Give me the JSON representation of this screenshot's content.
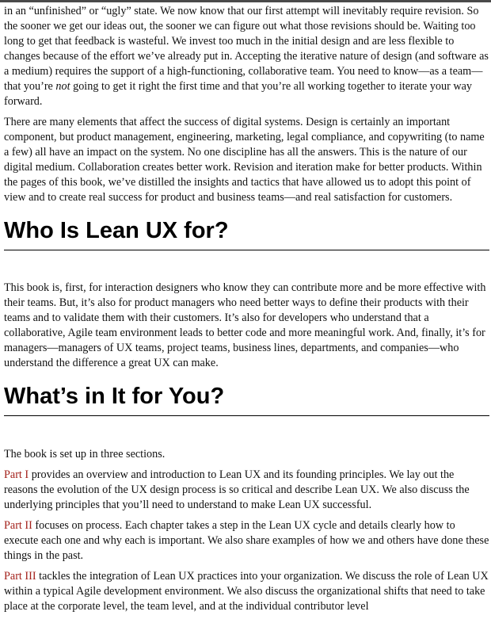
{
  "intro": {
    "p1_before_em": "in an “unfinished” or “ugly” state. We now know that our first attempt will inevitably require revision. So the sooner we get our ideas out, the sooner we can figure out what those revisions should be. Waiting too long to get that feedback is wasteful. We invest too much in the initial design and are less flexible to changes because of the effort we’ve already put in. Accepting the iterative nature of design (and software as a medium) requires the support of a high-functioning, collaborative team. You need to know—as a team—that you’re ",
    "p1_em": "not",
    "p1_after_em": " going to get it right the first time and that you’re all working together to iterate your way forward.",
    "p2": "There are many elements that affect the success of digital systems. Design is certainly an important component, but product management, engineering, marketing, legal compliance, and copywriting (to name a few) all have an impact on the system. No one discipline has all the answers. This is the nature of our digital medium. Collaboration creates better work. Revision and iteration make for better products. Within the pages of this book, we’ve distilled the insights and tactics that have allowed us to adopt this point of view and to create real success for product and business teams—and real satisfaction for customers."
  },
  "section_who": {
    "heading": "Who Is Lean UX for?",
    "p1": "This book is, first, for interaction designers who know they can contribute more and be more effective with their teams. But, it’s also for product managers who need better ways to define their products with their teams and to validate them with their customers. It’s also for developers who understand that a collaborative, Agile team environment leads to better code and more meaningful work. And, finally, it’s for managers—managers of UX teams, project teams, business lines, departments, and companies—who understand the difference a great UX can make."
  },
  "section_what": {
    "heading": "What’s in It for You?",
    "p1": "The book is set up in three sections.",
    "part1_label": "Part I",
    "part1_text": " provides an overview and introduction to Lean UX and its founding principles. We lay out the reasons the evolution of the UX design process is so critical and describe Lean UX. We also discuss the underlying principles that you’ll need to understand to make Lean UX successful.",
    "part2_label": "Part II",
    "part2_text": " focuses on process. Each chapter takes a step in the Lean UX cycle and details clearly how to execute each one and why each is important. We also share examples of how we and others have done these things in the past.",
    "part3_label": "Part III",
    "part3_text": " tackles the integration of Lean UX practices into your organization. We discuss the role of Lean UX within a typical Agile development environment. We also discuss the organizational shifts that need to take place at the corporate level, the team level, and at the individual contributor level"
  },
  "colors": {
    "part_label": "#a3211b",
    "text": "#111111"
  }
}
